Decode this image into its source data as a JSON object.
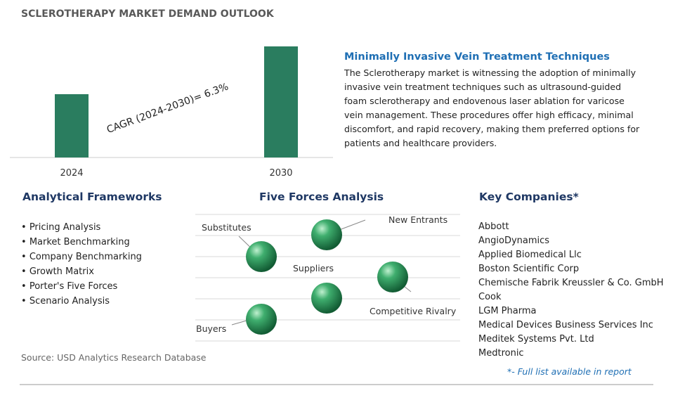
{
  "header": {
    "title": "SCLEROTHERAPY MARKET DEMAND OUTLOOK"
  },
  "chart_data": {
    "type": "bar",
    "categories": [
      "2024",
      "2030"
    ],
    "values": [
      57,
      100
    ],
    "color": "#2a7d5f",
    "annotation": "CAGR (2024-2030)=  6.3%"
  },
  "insight": {
    "title": "Minimally Invasive Vein Treatment Techniques",
    "text": "The Sclerotherapy market is witnessing the adoption of minimally invasive vein treatment techniques such as ultrasound-guided foam sclerotherapy and endovenous laser ablation for varicose vein management. These procedures offer high efficacy, minimal discomfort, and rapid recovery, making them preferred options for patients and healthcare providers."
  },
  "frameworks": {
    "title": "Analytical Frameworks",
    "items": [
      "Pricing Analysis",
      "Market Benchmarking",
      "Company Benchmarking",
      "Growth Matrix",
      "Porter's Five Forces",
      "Scenario Analysis"
    ]
  },
  "five_forces": {
    "title": "Five Forces Analysis",
    "labels": [
      "Substitutes",
      "New Entrants",
      "Suppliers",
      "Competitive Rivalry",
      "Buyers"
    ]
  },
  "companies": {
    "title": "Key Companies*",
    "items": [
      "Abbott",
      "AngioDynamics",
      "Applied Biomedical Llc",
      "Boston Scientific Corp",
      "Chemische Fabrik Kreussler & Co. GmbH",
      "Cook",
      "LGM Pharma",
      "Medical Devices Business Services Inc",
      "Meditek Systems Pvt. Ltd",
      "Medtronic"
    ],
    "note": "*- Full list available in report"
  },
  "source": "Source: USD Analytics Research Database"
}
